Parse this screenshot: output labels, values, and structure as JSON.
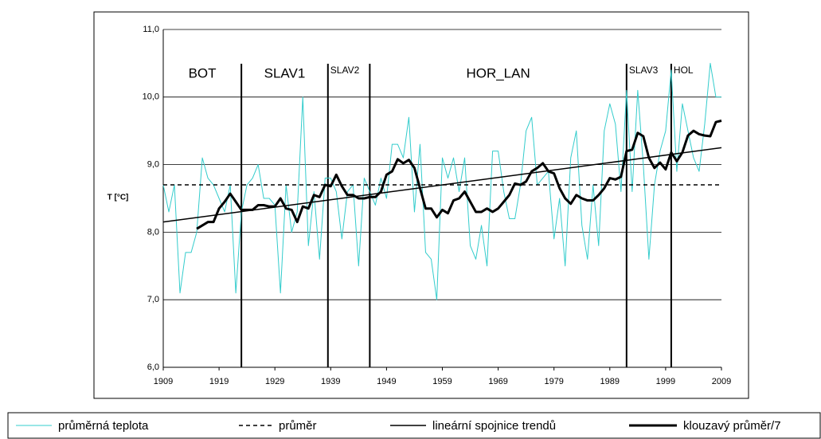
{
  "chart_data": {
    "type": "line",
    "y_label": "T [°C]",
    "x": [
      1909,
      1910,
      1911,
      1912,
      1913,
      1914,
      1915,
      1916,
      1917,
      1918,
      1919,
      1920,
      1921,
      1922,
      1923,
      1924,
      1925,
      1926,
      1927,
      1928,
      1929,
      1930,
      1931,
      1932,
      1933,
      1934,
      1935,
      1936,
      1937,
      1938,
      1939,
      1940,
      1941,
      1942,
      1943,
      1944,
      1945,
      1946,
      1947,
      1948,
      1949,
      1950,
      1951,
      1952,
      1953,
      1954,
      1955,
      1956,
      1957,
      1958,
      1959,
      1960,
      1961,
      1962,
      1963,
      1964,
      1965,
      1966,
      1967,
      1968,
      1969,
      1970,
      1971,
      1972,
      1973,
      1974,
      1975,
      1976,
      1977,
      1978,
      1979,
      1980,
      1981,
      1982,
      1983,
      1984,
      1985,
      1986,
      1987,
      1988,
      1989,
      1990,
      1991,
      1992,
      1993,
      1994,
      1995,
      1996,
      1997,
      1998,
      1999,
      2000,
      2001,
      2002,
      2003,
      2004,
      2005,
      2006,
      2007,
      2008,
      2009
    ],
    "series": [
      {
        "name": "průměrná teplota",
        "color": "#33cccc",
        "line_style": "solid",
        "bold": false,
        "values": [
          8.7,
          8.3,
          8.7,
          7.1,
          7.7,
          7.7,
          8.0,
          9.1,
          8.8,
          8.7,
          8.5,
          8.3,
          8.7,
          7.1,
          8.3,
          8.7,
          8.8,
          9.0,
          8.5,
          8.5,
          8.4,
          7.1,
          8.7,
          8.0,
          8.3,
          10.0,
          7.8,
          8.6,
          7.6,
          8.8,
          8.8,
          8.6,
          7.9,
          8.6,
          8.7,
          7.5,
          8.8,
          8.6,
          8.4,
          8.8,
          8.5,
          9.3,
          9.3,
          9.1,
          9.7,
          8.3,
          9.3,
          7.7,
          7.6,
          7.0,
          9.1,
          8.8,
          9.1,
          8.6,
          9.1,
          7.8,
          7.6,
          8.1,
          7.5,
          9.2,
          9.2,
          8.6,
          8.2,
          8.2,
          8.7,
          9.5,
          9.7,
          8.7,
          8.8,
          8.9,
          7.9,
          8.5,
          7.5,
          9.1,
          9.5,
          8.1,
          7.6,
          8.7,
          7.8,
          9.5,
          9.9,
          9.6,
          8.6,
          10.1,
          8.6,
          10.1,
          9.0,
          7.6,
          8.7,
          9.2,
          9.5,
          10.4,
          8.9,
          9.9,
          9.5,
          9.1,
          8.9,
          9.6,
          10.5,
          10.0,
          10.0
        ]
      },
      {
        "name": "průměr",
        "color": "#000000",
        "line_style": "dashed",
        "bold": false,
        "x": [
          1909,
          2009
        ],
        "values": [
          8.7,
          8.7
        ]
      },
      {
        "name": "lineární spojnice trendů",
        "color": "#000000",
        "line_style": "solid",
        "bold": false,
        "x": [
          1909,
          2009
        ],
        "values": [
          8.15,
          9.25
        ]
      },
      {
        "name": "klouzavý průměr/7",
        "color": "#000000",
        "line_style": "solid",
        "bold": true,
        "values": [
          null,
          null,
          null,
          null,
          null,
          null,
          8.05,
          8.1,
          8.15,
          8.15,
          8.35,
          8.45,
          8.57,
          8.45,
          8.33,
          8.33,
          8.33,
          8.4,
          8.4,
          8.38,
          8.38,
          8.5,
          8.35,
          8.33,
          8.15,
          8.38,
          8.35,
          8.55,
          8.52,
          8.7,
          8.68,
          8.85,
          8.68,
          8.55,
          8.55,
          8.5,
          8.5,
          8.52,
          8.52,
          8.6,
          8.85,
          8.9,
          9.08,
          9.02,
          9.07,
          8.95,
          8.65,
          8.35,
          8.35,
          8.22,
          8.33,
          8.28,
          8.47,
          8.5,
          8.6,
          8.45,
          8.3,
          8.3,
          8.35,
          8.3,
          8.35,
          8.45,
          8.55,
          8.72,
          8.7,
          8.75,
          8.9,
          8.95,
          9.02,
          8.9,
          8.87,
          8.65,
          8.5,
          8.42,
          8.55,
          8.5,
          8.47,
          8.47,
          8.55,
          8.65,
          8.8,
          8.78,
          8.82,
          9.2,
          9.22,
          9.47,
          9.42,
          9.1,
          8.95,
          9.03,
          8.93,
          9.18,
          9.05,
          9.18,
          9.43,
          9.5,
          9.45,
          9.43,
          9.42,
          9.63,
          9.65
        ]
      }
    ],
    "period_lines": [
      1923,
      1938.5,
      1946,
      1992,
      2000
    ],
    "period_labels": [
      "BOT",
      "SLAV1",
      "SLAV2",
      "HOR_LAN",
      "SLAV3",
      "HOL"
    ],
    "xlim": [
      1909,
      2009
    ],
    "xticks": [
      1909,
      1919,
      1929,
      1939,
      1949,
      1959,
      1969,
      1979,
      1989,
      1999,
      2009
    ],
    "ylim": [
      6,
      11
    ],
    "yticks": [
      {
        "value": 6,
        "label": "6,0"
      },
      {
        "value": 7,
        "label": "7,0"
      },
      {
        "value": 8,
        "label": "8,0"
      },
      {
        "value": 9,
        "label": "9,0"
      },
      {
        "value": 10,
        "label": "10,0"
      },
      {
        "value": 11,
        "label": "11,0"
      }
    ],
    "grid": true
  }
}
